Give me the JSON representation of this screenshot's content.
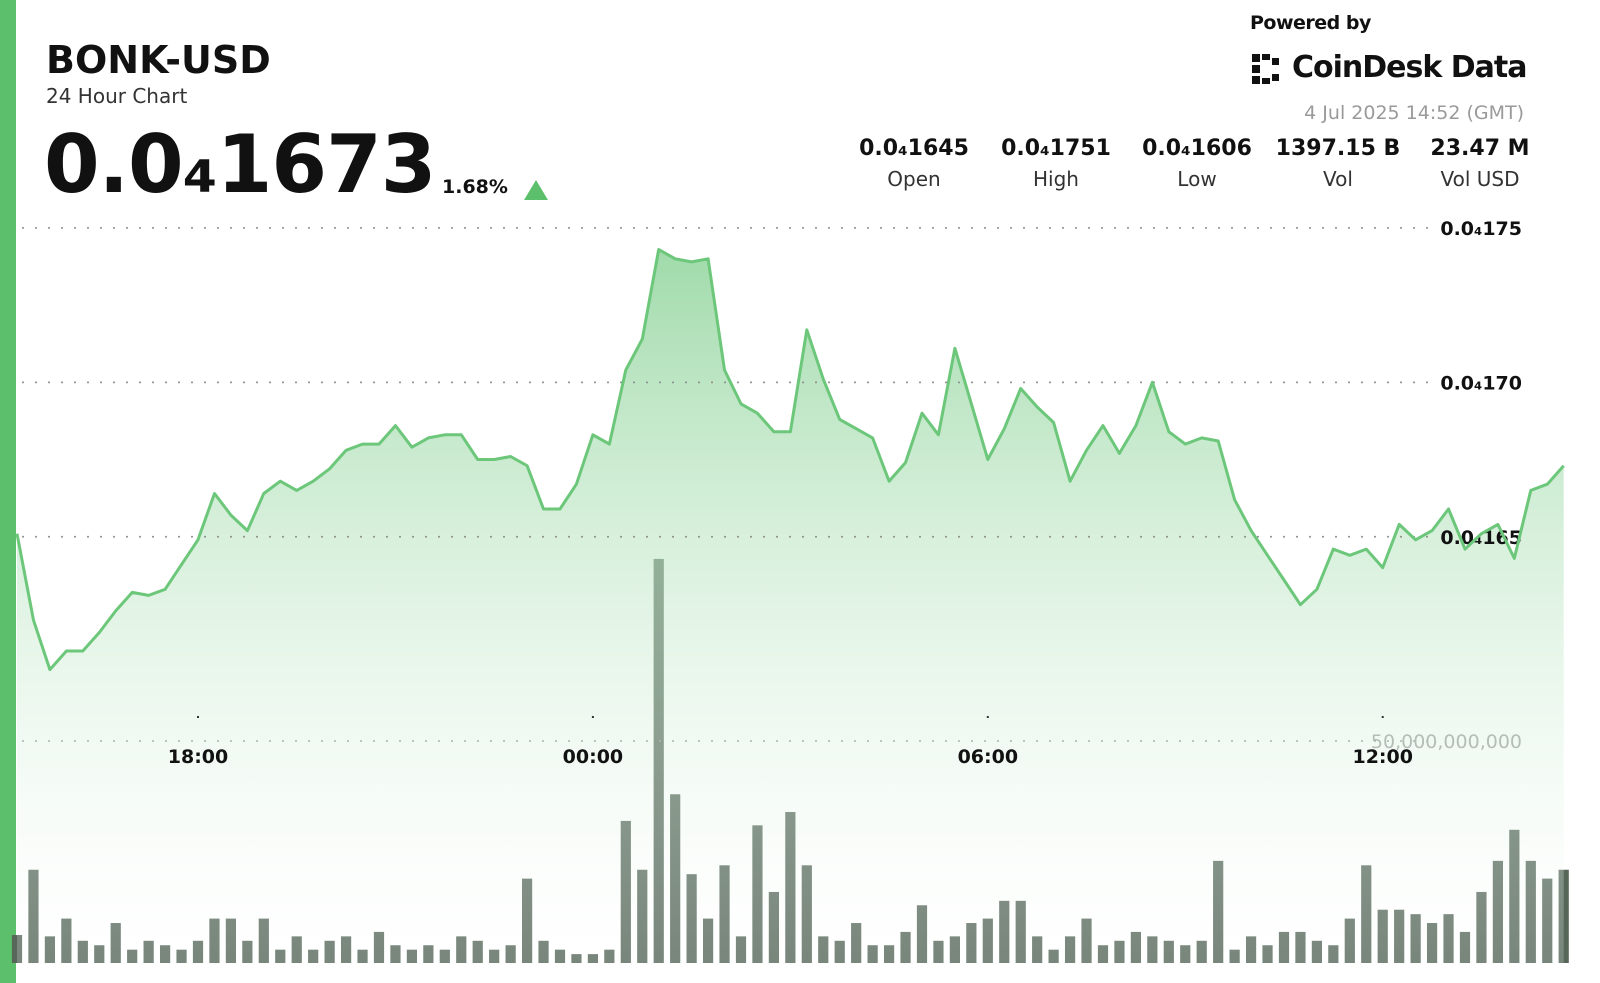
{
  "header": {
    "symbol": "BONK-USD",
    "subtitle": "24 Hour Chart",
    "price": "0.0₄1673",
    "change": "1.68%",
    "powered_by": "Powered by",
    "brand": "CoinDesk Data",
    "timestamp": "4 Jul 2025 14:52 (GMT)",
    "stats": [
      {
        "value": "0.0₄1645",
        "label": "Open"
      },
      {
        "value": "0.0₄1751",
        "label": "High"
      },
      {
        "value": "0.0₄1606",
        "label": "Low"
      },
      {
        "value": "1397.15 B",
        "label": "Vol"
      },
      {
        "value": "23.47 M",
        "label": "Vol USD"
      }
    ]
  },
  "chart_data": [
    {
      "type": "area",
      "color": "#6cc77a",
      "x": [
        15.25,
        15.5,
        15.75,
        16,
        16.25,
        16.5,
        16.75,
        17,
        17.25,
        17.5,
        17.75,
        18,
        18.25,
        18.5,
        18.75,
        19,
        19.25,
        19.5,
        19.75,
        20,
        20.25,
        20.5,
        20.75,
        21,
        21.25,
        21.5,
        21.75,
        22,
        22.25,
        22.5,
        22.75,
        23,
        23.25,
        23.5,
        23.75,
        24,
        24.25,
        24.5,
        24.75,
        25,
        25.25,
        25.5,
        25.75,
        26,
        26.25,
        26.5,
        26.75,
        27,
        27.25,
        27.5,
        27.75,
        28,
        28.25,
        28.5,
        28.75,
        29,
        29.25,
        29.5,
        29.75,
        30,
        30.25,
        30.5,
        30.75,
        31,
        31.25,
        31.5,
        31.75,
        32,
        32.25,
        32.5,
        32.75,
        33,
        33.25,
        33.5,
        33.75,
        34,
        34.25,
        34.5,
        34.75,
        35,
        35.25,
        35.5,
        35.75,
        36,
        36.25,
        36.5,
        36.75,
        37,
        37.25,
        37.5,
        37.75,
        38,
        38.25,
        38.5,
        38.75
      ],
      "values": [
        1.651e-05,
        1.623e-05,
        1.607e-05,
        1.613e-05,
        1.613e-05,
        1.619e-05,
        1.626e-05,
        1.632e-05,
        1.631e-05,
        1.633e-05,
        1.641e-05,
        1.649e-05,
        1.664e-05,
        1.657e-05,
        1.652e-05,
        1.664e-05,
        1.668e-05,
        1.665e-05,
        1.668e-05,
        1.672e-05,
        1.678e-05,
        1.68e-05,
        1.68e-05,
        1.686e-05,
        1.679e-05,
        1.682e-05,
        1.683e-05,
        1.683e-05,
        1.675e-05,
        1.675e-05,
        1.676e-05,
        1.673e-05,
        1.659e-05,
        1.659e-05,
        1.667e-05,
        1.683e-05,
        1.68e-05,
        1.704e-05,
        1.714e-05,
        1.743e-05,
        1.74e-05,
        1.739e-05,
        1.74e-05,
        1.704e-05,
        1.693e-05,
        1.69e-05,
        1.684e-05,
        1.684e-05,
        1.717e-05,
        1.701e-05,
        1.688e-05,
        1.685e-05,
        1.682e-05,
        1.668e-05,
        1.674e-05,
        1.69e-05,
        1.683e-05,
        1.711e-05,
        1.693e-05,
        1.675e-05,
        1.685e-05,
        1.698e-05,
        1.692e-05,
        1.687e-05,
        1.668e-05,
        1.678e-05,
        1.686e-05,
        1.677e-05,
        1.686e-05,
        1.7e-05,
        1.684e-05,
        1.68e-05,
        1.682e-05,
        1.681e-05,
        1.662e-05,
        1.652e-05,
        1.644e-05,
        1.636e-05,
        1.628e-05,
        1.633e-05,
        1.646e-05,
        1.644e-05,
        1.646e-05,
        1.64e-05,
        1.654e-05,
        1.649e-05,
        1.652e-05,
        1.659e-05,
        1.646e-05,
        1.651e-05,
        1.654e-05,
        1.643e-05,
        1.665e-05,
        1.667e-05,
        1.673e-05
      ],
      "xlim": [
        15.25,
        38.8
      ],
      "xticks": [
        {
          "value": 18,
          "label": "18:00"
        },
        {
          "value": 24,
          "label": "00:00"
        },
        {
          "value": 30,
          "label": "06:00"
        },
        {
          "value": 36,
          "label": "12:00"
        }
      ],
      "ylim": [
        1.512e-05,
        1.76e-05
      ],
      "yticks": [
        {
          "value": 1.65e-05,
          "label": "0.0₄165"
        },
        {
          "value": 1.7e-05,
          "label": "0.0₄170"
        },
        {
          "value": 1.75e-05,
          "label": "0.0₄175"
        }
      ],
      "grid": true
    },
    {
      "type": "bar",
      "color": "#56675a",
      "x": [
        15.25,
        15.5,
        15.75,
        16,
        16.25,
        16.5,
        16.75,
        17,
        17.25,
        17.5,
        17.75,
        18,
        18.25,
        18.5,
        18.75,
        19,
        19.25,
        19.5,
        19.75,
        20,
        20.25,
        20.5,
        20.75,
        21,
        21.25,
        21.5,
        21.75,
        22,
        22.25,
        22.5,
        22.75,
        23,
        23.25,
        23.5,
        23.75,
        24,
        24.25,
        24.5,
        24.75,
        25,
        25.25,
        25.5,
        25.75,
        26,
        26.25,
        26.5,
        26.75,
        27,
        27.25,
        27.5,
        27.75,
        28,
        28.25,
        28.5,
        28.75,
        29,
        29.25,
        29.5,
        29.75,
        30,
        30.25,
        30.5,
        30.75,
        31,
        31.25,
        31.5,
        31.75,
        32,
        32.25,
        32.5,
        32.75,
        33,
        33.25,
        33.5,
        33.75,
        34,
        34.25,
        34.5,
        34.75,
        35,
        35.25,
        35.5,
        35.75,
        36,
        36.25,
        36.5,
        36.75,
        37,
        37.25,
        37.5,
        37.75,
        38,
        38.25,
        38.5,
        38.75
      ],
      "values": [
        6300000000.0,
        21000000000.0,
        6000000000.0,
        10000000000.0,
        5000000000.0,
        4000000000.0,
        9000000000.0,
        3000000000.0,
        5000000000.0,
        4000000000.0,
        3000000000.0,
        5000000000.0,
        10000000000.0,
        10000000000.0,
        5000000000.0,
        10000000000.0,
        3000000000.0,
        6000000000.0,
        3000000000.0,
        5000000000.0,
        6000000000.0,
        3000000000.0,
        7000000000.0,
        4000000000.0,
        3000000000.0,
        4000000000.0,
        3000000000.0,
        6000000000.0,
        5000000000.0,
        3000000000.0,
        4000000000.0,
        19000000000.0,
        5000000000.0,
        3000000000.0,
        2000000000.0,
        2000000000.0,
        3000000000.0,
        32000000000.0,
        21000000000.0,
        91000000000.0,
        38000000000.0,
        20000000000.0,
        10000000000.0,
        22000000000.0,
        6000000000.0,
        31000000000.0,
        16000000000.0,
        34000000000.0,
        22000000000.0,
        6000000000.0,
        5000000000.0,
        9000000000.0,
        4000000000.0,
        4000000000.0,
        7000000000.0,
        13000000000.0,
        5000000000.0,
        6000000000.0,
        9000000000.0,
        10000000000.0,
        14000000000.0,
        14000000000.0,
        6000000000.0,
        3000000000.0,
        6000000000.0,
        10000000000.0,
        4000000000.0,
        5000000000.0,
        7000000000.0,
        6000000000.0,
        5000000000.0,
        4000000000.0,
        5000000000.0,
        23000000000.0,
        3000000000.0,
        6000000000.0,
        4000000000.0,
        7000000000.0,
        7000000000.0,
        5000000000.0,
        4000000000.0,
        10000000000.0,
        22000000000.0,
        12000000000.0,
        12000000000.0,
        11000000000.0,
        9000000000.0,
        11000000000.0,
        7000000000.0,
        16000000000.0,
        23000000000.0,
        30000000000.0,
        23000000000.0,
        19000000000.0,
        21000000000.0
      ],
      "xlim": [
        15.25,
        38.8
      ],
      "ylim": [
        0,
        172500000000.0
      ],
      "yticks": [
        {
          "value": 50000000000.0,
          "label": "50,000,000,000"
        }
      ],
      "grid": true
    }
  ]
}
